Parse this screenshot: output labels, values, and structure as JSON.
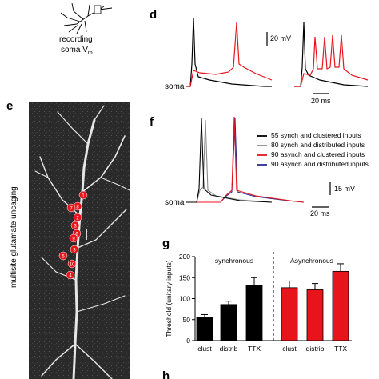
{
  "top_left": {
    "caption_line1": "recording",
    "caption_line2": "soma V",
    "caption_sub": "m"
  },
  "panel_d": {
    "letter": "d",
    "scale_v": "20 mV",
    "scale_t": "20 ms",
    "trace_label": "soma"
  },
  "panel_e": {
    "letter": "e",
    "side_label": "multisite glutamate uncaging",
    "spots": [
      "1",
      "8",
      "7",
      "2",
      "3",
      "6",
      "9",
      "3",
      "5",
      "10",
      "4"
    ]
  },
  "panel_f": {
    "letter": "f",
    "legend": [
      {
        "label": "55 synch and clustered inputs",
        "color": "#000000"
      },
      {
        "label": "80 synch and distributed inputs",
        "color": "#8a8a8a"
      },
      {
        "label": "90 asynch and clustered inputs",
        "color": "#e8141c"
      },
      {
        "label": "90 asynch and distributed inputs",
        "color": "#2b2f8f"
      }
    ],
    "scale_v": "15 mV",
    "scale_t": "20 ms",
    "trace_label": "soma"
  },
  "panel_g": {
    "letter": "g",
    "chart_data": {
      "type": "bar",
      "ylabel": "Threshold (unitary inputs)",
      "ylim": [
        0,
        200
      ],
      "yticks": [
        "0",
        "50",
        "100",
        "150",
        "200"
      ],
      "groups": [
        {
          "name": "synchronous",
          "color": "#000000",
          "categories": [
            "clust",
            "distrib",
            "TTX"
          ],
          "values": [
            55,
            86,
            132
          ],
          "errors": [
            7,
            8,
            18
          ]
        },
        {
          "name": "Asynchronous",
          "color": "#e8141c",
          "categories": [
            "clust",
            "distrib",
            "TTX"
          ],
          "values": [
            126,
            121,
            165
          ],
          "errors": [
            16,
            15,
            18
          ]
        }
      ]
    }
  },
  "panel_h": {
    "letter": "h"
  }
}
